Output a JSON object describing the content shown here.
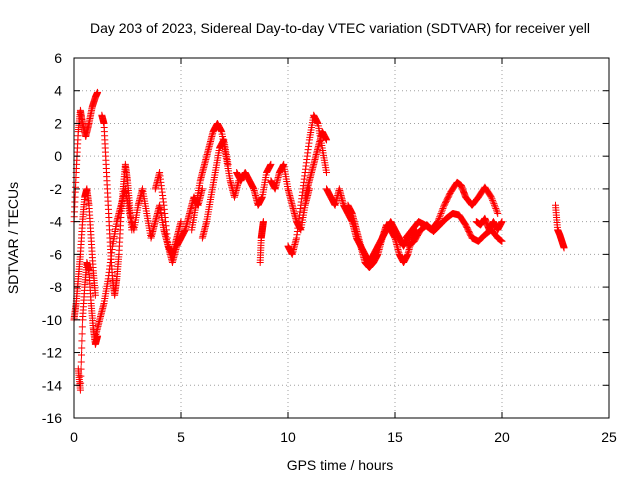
{
  "chart_data": {
    "type": "scatter",
    "title": "Day 203 of 2023, Sidereal Day-to-day VTEC variation (SDTVAR) for receiver yell",
    "xlabel": "GPS time / hours",
    "ylabel": "SDTVAR / TECUs",
    "xlim": [
      0,
      25
    ],
    "ylim": [
      -16,
      6
    ],
    "xticks": [
      0,
      5,
      10,
      15,
      20,
      25
    ],
    "yticks": [
      -16,
      -14,
      -12,
      -10,
      -8,
      -6,
      -4,
      -2,
      0,
      2,
      4,
      6
    ],
    "grid": true,
    "marker": "+",
    "color": "#ff0000",
    "series": [
      {
        "name": "SDTVAR",
        "segments": [
          {
            "x": [
              0.0,
              0.1,
              0.2,
              0.3,
              0.4,
              0.55,
              0.7,
              0.85,
              1.0,
              1.1
            ],
            "y": [
              -4.0,
              -1.0,
              1.5,
              2.8,
              2.0,
              1.2,
              2.0,
              3.0,
              3.6,
              3.9
            ]
          },
          {
            "x": [
              0.2,
              0.3,
              0.4,
              0.5,
              0.6,
              0.7,
              0.8,
              0.9,
              1.0,
              1.1
            ],
            "y": [
              -13.0,
              -14.3,
              -10.0,
              -8.0,
              -6.5,
              -7.0,
              -9.0,
              -10.5,
              -11.5,
              -11.0
            ]
          },
          {
            "x": [
              0.0,
              0.1,
              0.2,
              0.3,
              0.4,
              0.5,
              0.6,
              0.7,
              0.8,
              0.9,
              1.0
            ],
            "y": [
              -10.0,
              -9.0,
              -7.5,
              -6.0,
              -4.0,
              -2.5,
              -2.0,
              -3.0,
              -5.0,
              -7.0,
              -8.5
            ]
          },
          {
            "x": [
              1.0,
              1.2,
              1.4,
              1.6,
              1.8,
              2.0,
              2.2,
              2.4
            ],
            "y": [
              -11.0,
              -10.0,
              -9.0,
              -7.5,
              -5.5,
              -4.0,
              -3.0,
              -2.0
            ]
          },
          {
            "x": [
              1.3,
              1.4,
              1.5,
              1.6,
              1.7,
              1.8,
              1.9,
              2.0,
              2.1,
              2.2,
              2.3,
              2.4,
              2.5,
              2.6,
              2.7
            ],
            "y": [
              2.5,
              2.0,
              -0.5,
              -3.0,
              -5.5,
              -7.5,
              -8.5,
              -7.5,
              -6.0,
              -3.5,
              -2.0,
              -0.5,
              -1.5,
              -3.0,
              -4.5
            ]
          },
          {
            "x": [
              2.4,
              2.6,
              2.8,
              3.0,
              3.2,
              3.4,
              3.6,
              3.8,
              4.0,
              4.2,
              4.4,
              4.6,
              4.8,
              5.0
            ],
            "y": [
              -2.0,
              -3.5,
              -4.5,
              -3.0,
              -2.0,
              -3.5,
              -5.0,
              -4.0,
              -3.0,
              -4.5,
              -5.5,
              -6.0,
              -5.0,
              -4.0
            ]
          },
          {
            "x": [
              3.8,
              4.0,
              4.2,
              4.4,
              4.6,
              4.8,
              5.0,
              5.2,
              5.4,
              5.6,
              5.8,
              6.0
            ],
            "y": [
              -2.0,
              -1.0,
              -3.0,
              -5.5,
              -6.5,
              -5.5,
              -5.0,
              -4.5,
              -3.5,
              -2.5,
              -3.0,
              -2.0
            ]
          },
          {
            "x": [
              5.5,
              5.7,
              5.9,
              6.1,
              6.3,
              6.5,
              6.7,
              6.9,
              7.1,
              7.3,
              7.5,
              7.7
            ],
            "y": [
              -4.5,
              -3.0,
              -1.5,
              -0.5,
              0.5,
              1.5,
              2.0,
              1.5,
              0.0,
              -1.5,
              -2.5,
              -1.5
            ]
          },
          {
            "x": [
              6.0,
              6.2,
              6.4,
              6.6,
              6.8,
              7.0,
              7.2
            ],
            "y": [
              -5.0,
              -4.0,
              -2.5,
              -1.0,
              0.5,
              1.0,
              -0.5
            ]
          },
          {
            "x": [
              7.6,
              7.8,
              8.0,
              8.2,
              8.4,
              8.6,
              8.8,
              9.0,
              9.2
            ],
            "y": [
              -1.0,
              -1.5,
              -1.0,
              -1.5,
              -2.0,
              -3.0,
              -2.5,
              -1.0,
              -0.5
            ]
          },
          {
            "x": [
              8.7,
              8.75,
              8.8,
              8.85
            ],
            "y": [
              -6.5,
              -5.0,
              -4.5,
              -4.0
            ]
          },
          {
            "x": [
              9.2,
              9.4,
              9.6,
              9.8,
              10.0,
              10.2,
              10.4,
              10.6,
              10.8,
              11.0
            ],
            "y": [
              -1.5,
              -2.0,
              -1.0,
              -0.5,
              -2.0,
              -3.0,
              -4.0,
              -4.5,
              -3.0,
              -2.0
            ]
          },
          {
            "x": [
              10.0,
              10.2,
              10.4,
              10.6,
              10.8,
              11.0,
              11.2,
              11.4,
              11.6,
              11.8
            ],
            "y": [
              -5.5,
              -6.0,
              -5.0,
              -3.0,
              -1.0,
              1.0,
              2.5,
              2.0,
              0.5,
              -1.0
            ]
          },
          {
            "x": [
              10.8,
              11.0,
              11.2,
              11.4,
              11.6,
              11.8
            ],
            "y": [
              -2.5,
              -1.5,
              -0.5,
              0.5,
              1.5,
              1.0
            ]
          },
          {
            "x": [
              11.8,
              12.0,
              12.2,
              12.4,
              12.6,
              12.8,
              13.0,
              13.2,
              13.4,
              13.6,
              13.8,
              14.0,
              14.2,
              14.4,
              14.6,
              14.8,
              15.0,
              15.2,
              15.4,
              15.6,
              15.8,
              16.0
            ],
            "y": [
              -2.0,
              -2.5,
              -3.0,
              -2.0,
              -3.0,
              -3.5,
              -4.0,
              -5.0,
              -5.5,
              -6.5,
              -6.8,
              -6.5,
              -6.0,
              -5.0,
              -4.2,
              -4.5,
              -5.0,
              -6.0,
              -6.5,
              -6.0,
              -5.0,
              -4.5
            ]
          },
          {
            "x": [
              12.8,
              13.0,
              13.2,
              13.4,
              13.6,
              13.8,
              14.0,
              14.2,
              14.4,
              14.6,
              14.8,
              15.0,
              15.2,
              15.4,
              15.6
            ],
            "y": [
              -3.0,
              -3.5,
              -4.5,
              -5.5,
              -6.0,
              -6.5,
              -6.0,
              -5.5,
              -5.0,
              -4.5,
              -4.0,
              -4.5,
              -5.0,
              -5.5,
              -5.0
            ]
          },
          {
            "x": [
              15.5,
              15.8,
              16.1,
              16.4,
              16.7,
              17.0,
              17.3,
              17.6,
              17.9,
              18.1,
              18.3,
              18.6,
              18.9,
              19.2,
              19.5,
              19.8
            ],
            "y": [
              -5.0,
              -4.5,
              -4.0,
              -4.2,
              -4.5,
              -4.0,
              -3.0,
              -2.2,
              -1.6,
              -1.8,
              -2.5,
              -3.0,
              -2.5,
              -1.9,
              -2.5,
              -3.5
            ]
          },
          {
            "x": [
              15.6,
              15.9,
              16.2,
              16.5,
              16.8,
              17.1,
              17.4,
              17.7,
              18.0,
              18.3,
              18.6,
              18.9,
              19.2,
              19.5,
              19.8,
              20.0
            ],
            "y": [
              -5.5,
              -5.2,
              -4.5,
              -4.2,
              -4.6,
              -4.2,
              -3.8,
              -3.5,
              -3.6,
              -4.2,
              -5.0,
              -5.2,
              -4.8,
              -4.5,
              -5.0,
              -5.2
            ]
          },
          {
            "x": [
              18.8,
              19.0,
              19.2,
              19.4,
              19.6,
              19.8,
              20.0
            ],
            "y": [
              -4.0,
              -4.2,
              -3.8,
              -4.5,
              -4.0,
              -4.5,
              -4.0
            ]
          },
          {
            "x": [
              22.5,
              22.6,
              22.7,
              22.8,
              22.9
            ],
            "y": [
              -3.0,
              -4.5,
              -4.8,
              -5.2,
              -5.6
            ]
          }
        ]
      }
    ]
  }
}
